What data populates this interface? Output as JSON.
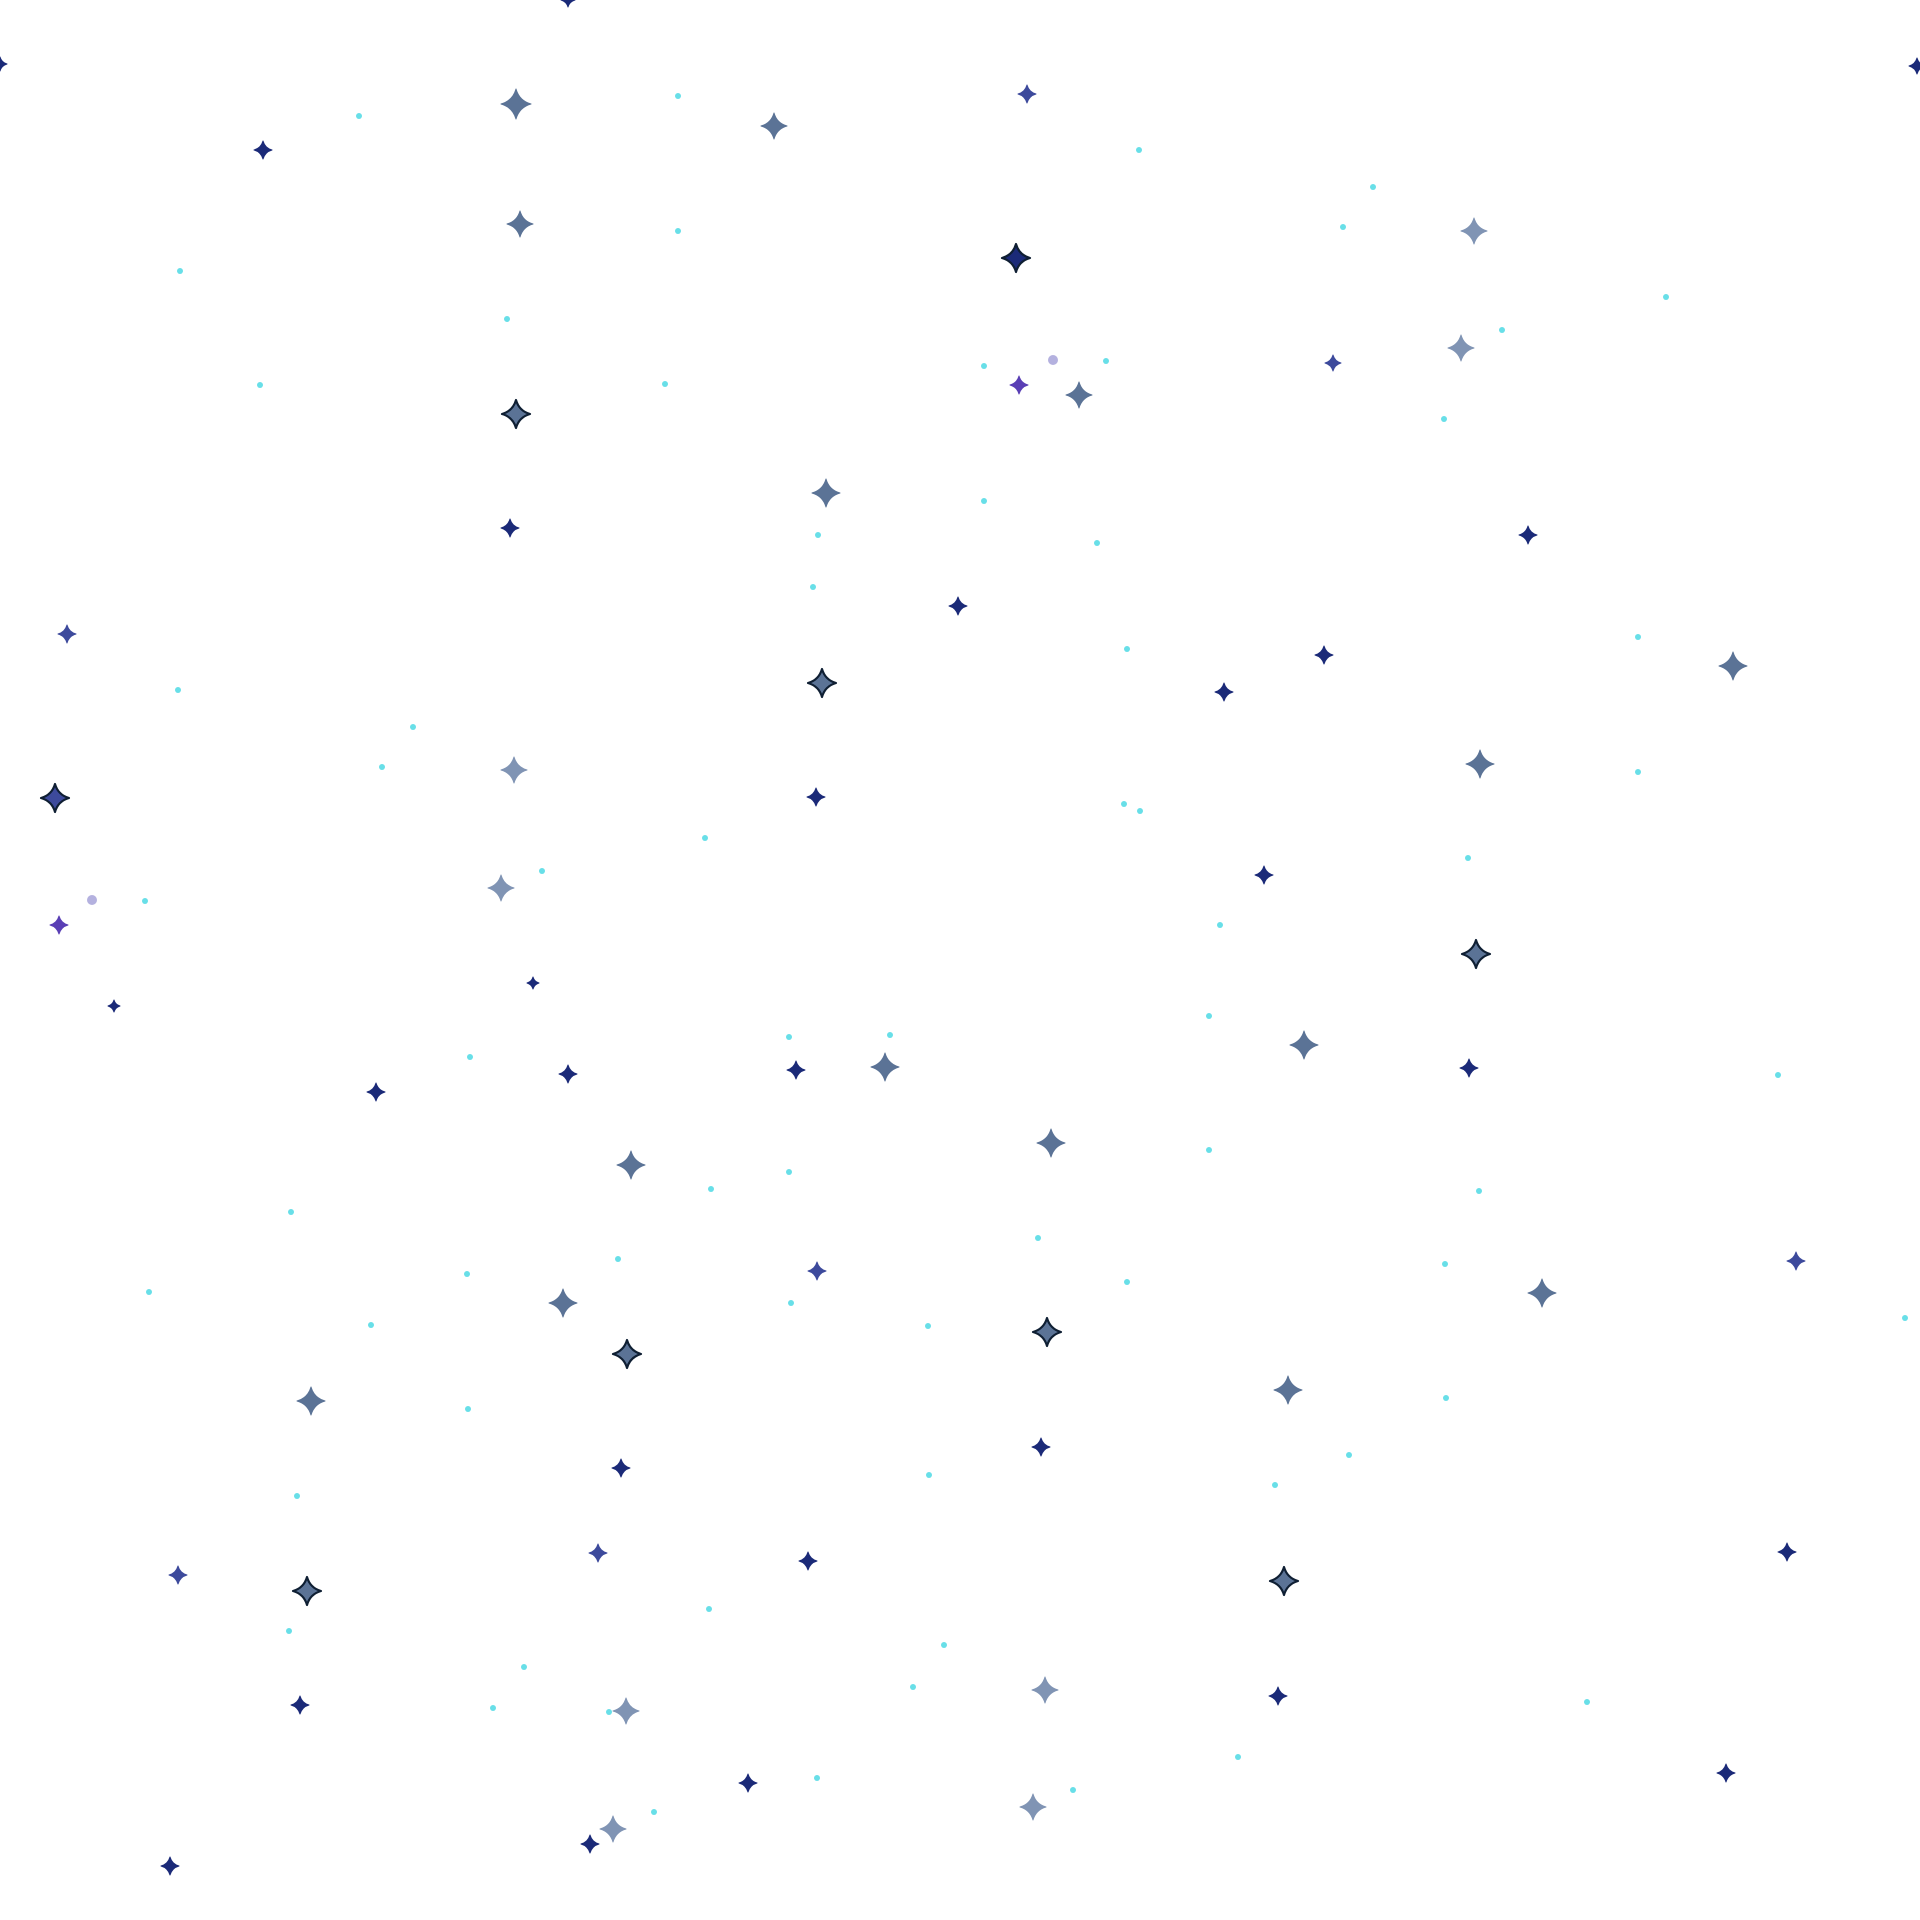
{
  "pattern": {
    "background_color": "#ffffff",
    "palette": {
      "navy": "#1b2a78",
      "indigo": "#3d4a9c",
      "violet": "#5a3fb5",
      "slate": "#5b7396",
      "steel": "#8094b4",
      "outline": "#0f1f33",
      "cyan": "#36d4e0",
      "lilac": "#a7a3d9"
    },
    "mark_kinds": [
      "four-point-sparkle",
      "dot"
    ]
  }
}
